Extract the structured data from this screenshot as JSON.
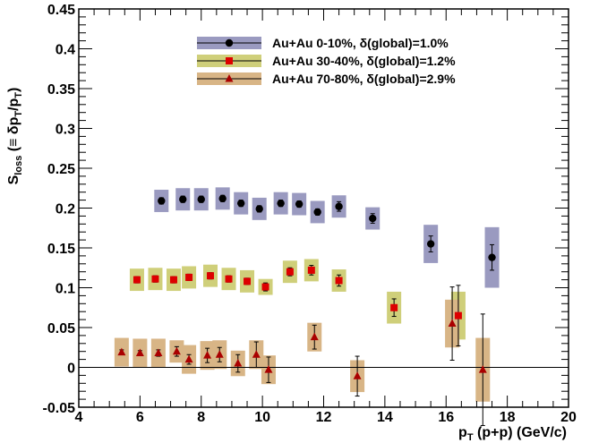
{
  "chart_data": {
    "type": "scatter",
    "title": "",
    "xlabel": {
      "main": "p",
      "sub": "T",
      "rest": " (p+p) (GeV/c)"
    },
    "ylabel": {
      "main": "S",
      "sub": "loss",
      "rest": " (≡ δp",
      "sub2": "T",
      "rest2": "/p",
      "sub3": "T",
      "rest3": ")"
    },
    "xlim": [
      4,
      20
    ],
    "ylim": [
      -0.05,
      0.45
    ],
    "x_ticks": [
      "4",
      "6",
      "8",
      "10",
      "12",
      "14",
      "16",
      "18",
      "20"
    ],
    "x_tick_values": [
      4,
      6,
      8,
      10,
      12,
      14,
      16,
      18,
      20
    ],
    "y_ticks": [
      "-0.05",
      "0",
      "0.05",
      "0.1",
      "0.15",
      "0.2",
      "0.25",
      "0.3",
      "0.35",
      "0.4",
      "0.45"
    ],
    "y_tick_values": [
      -0.05,
      0,
      0.05,
      0.1,
      0.15,
      0.2,
      0.25,
      0.3,
      0.35,
      0.4,
      0.45
    ],
    "zero_line": true,
    "grid": false,
    "legend_position": "top-center",
    "series": [
      {
        "name": "Au+Au 0-10%, δ(global)=1.0%",
        "marker": "circle",
        "marker_color": "#000000",
        "band_color": "#9a9ac0",
        "points": [
          {
            "x": 6.7,
            "y": 0.209,
            "stat": 0.004,
            "sys": 0.014
          },
          {
            "x": 7.4,
            "y": 0.211,
            "stat": 0.004,
            "sys": 0.014
          },
          {
            "x": 8.0,
            "y": 0.211,
            "stat": 0.004,
            "sys": 0.014
          },
          {
            "x": 8.7,
            "y": 0.212,
            "stat": 0.004,
            "sys": 0.014
          },
          {
            "x": 9.3,
            "y": 0.206,
            "stat": 0.004,
            "sys": 0.014
          },
          {
            "x": 9.9,
            "y": 0.199,
            "stat": 0.004,
            "sys": 0.014
          },
          {
            "x": 10.6,
            "y": 0.206,
            "stat": 0.004,
            "sys": 0.014
          },
          {
            "x": 11.2,
            "y": 0.205,
            "stat": 0.004,
            "sys": 0.014
          },
          {
            "x": 11.8,
            "y": 0.195,
            "stat": 0.004,
            "sys": 0.014
          },
          {
            "x": 12.5,
            "y": 0.202,
            "stat": 0.006,
            "sys": 0.014
          },
          {
            "x": 13.6,
            "y": 0.187,
            "stat": 0.006,
            "sys": 0.014
          },
          {
            "x": 15.5,
            "y": 0.155,
            "stat": 0.01,
            "sys": 0.024
          },
          {
            "x": 17.5,
            "y": 0.138,
            "stat": 0.016,
            "sys": 0.038
          }
        ]
      },
      {
        "name": "Au+Au 30-40%, δ(global)=1.2%",
        "marker": "square",
        "marker_color": "#dd0000",
        "band_color": "#cfcf7a",
        "points": [
          {
            "x": 5.9,
            "y": 0.11,
            "stat": 0.004,
            "sys": 0.014
          },
          {
            "x": 6.5,
            "y": 0.111,
            "stat": 0.004,
            "sys": 0.014
          },
          {
            "x": 7.1,
            "y": 0.11,
            "stat": 0.004,
            "sys": 0.014
          },
          {
            "x": 7.6,
            "y": 0.113,
            "stat": 0.004,
            "sys": 0.014
          },
          {
            "x": 8.3,
            "y": 0.115,
            "stat": 0.004,
            "sys": 0.014
          },
          {
            "x": 8.9,
            "y": 0.111,
            "stat": 0.004,
            "sys": 0.014
          },
          {
            "x": 9.5,
            "y": 0.108,
            "stat": 0.004,
            "sys": 0.014
          },
          {
            "x": 10.1,
            "y": 0.101,
            "stat": 0.005,
            "sys": 0.01
          },
          {
            "x": 10.9,
            "y": 0.12,
            "stat": 0.005,
            "sys": 0.014
          },
          {
            "x": 11.6,
            "y": 0.122,
            "stat": 0.006,
            "sys": 0.014
          },
          {
            "x": 12.5,
            "y": 0.109,
            "stat": 0.007,
            "sys": 0.014
          },
          {
            "x": 14.3,
            "y": 0.075,
            "stat": 0.011,
            "sys": 0.02
          },
          {
            "x": 16.4,
            "y": 0.065,
            "stat": 0.038,
            "sys": 0.03
          }
        ]
      },
      {
        "name": "Au+Au 70-80%, δ(global)=2.9%",
        "marker": "triangle",
        "marker_color": "#aa0000",
        "band_color": "#d8b586",
        "points": [
          {
            "x": 5.4,
            "y": 0.019,
            "stat": 0.003,
            "sys": 0.018
          },
          {
            "x": 6.0,
            "y": 0.018,
            "stat": 0.003,
            "sys": 0.018
          },
          {
            "x": 6.6,
            "y": 0.018,
            "stat": 0.004,
            "sys": 0.018
          },
          {
            "x": 7.2,
            "y": 0.02,
            "stat": 0.006,
            "sys": 0.014
          },
          {
            "x": 7.6,
            "y": 0.01,
            "stat": 0.006,
            "sys": 0.018
          },
          {
            "x": 8.2,
            "y": 0.015,
            "stat": 0.009,
            "sys": 0.018
          },
          {
            "x": 8.6,
            "y": 0.016,
            "stat": 0.009,
            "sys": 0.018
          },
          {
            "x": 9.2,
            "y": 0.005,
            "stat": 0.011,
            "sys": 0.016
          },
          {
            "x": 9.8,
            "y": 0.016,
            "stat": 0.016,
            "sys": 0.018
          },
          {
            "x": 10.2,
            "y": -0.003,
            "stat": 0.016,
            "sys": 0.018
          },
          {
            "x": 11.7,
            "y": 0.038,
            "stat": 0.015,
            "sys": 0.018
          },
          {
            "x": 13.1,
            "y": -0.011,
            "stat": 0.025,
            "sys": 0.02
          },
          {
            "x": 16.2,
            "y": 0.055,
            "stat": 0.046,
            "sys": 0.03
          },
          {
            "x": 17.2,
            "y": -0.003,
            "stat": 0.07,
            "sys": 0.04
          }
        ]
      }
    ]
  }
}
